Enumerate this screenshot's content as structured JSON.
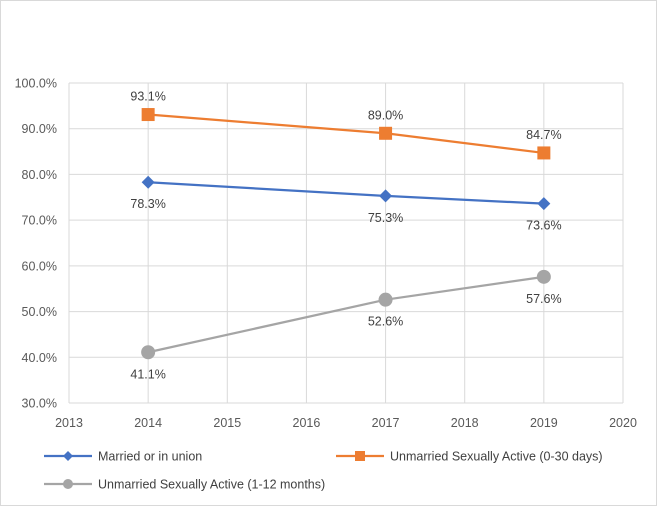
{
  "chart_data": {
    "type": "line",
    "title": "",
    "xlabel": "",
    "ylabel": "",
    "xlim": [
      2013,
      2020
    ],
    "ylim": [
      30,
      100
    ],
    "x_ticks": [
      2013,
      2014,
      2015,
      2016,
      2017,
      2018,
      2019,
      2020
    ],
    "y_ticks": [
      30,
      40,
      50,
      60,
      70,
      80,
      90,
      100
    ],
    "x_tick_labels": [
      "2013",
      "2014",
      "2015",
      "2016",
      "2017",
      "2018",
      "2019",
      "2020"
    ],
    "y_tick_labels": [
      "30.0%",
      "40.0%",
      "50.0%",
      "60.0%",
      "70.0%",
      "80.0%",
      "90.0%",
      "100.0%"
    ],
    "grid": true,
    "legend_position": "bottom",
    "series": [
      {
        "name": "Married or in union",
        "color": "#4472c4",
        "marker": "diamond",
        "x": [
          2014,
          2017,
          2019
        ],
        "values": [
          78.3,
          75.3,
          73.6
        ],
        "labels": [
          "78.3%",
          "75.3%",
          "73.6%"
        ],
        "label_position": "below"
      },
      {
        "name": "Unmarried Sexually Active (0-30 days)",
        "color": "#ed7d31",
        "marker": "square",
        "x": [
          2014,
          2017,
          2019
        ],
        "values": [
          93.1,
          89.0,
          84.7
        ],
        "labels": [
          "93.1%",
          "89.0%",
          "84.7%"
        ],
        "label_position": "above"
      },
      {
        "name": "Unmarried Sexually Active (1-12 months)",
        "color": "#a5a5a5",
        "marker": "circle",
        "x": [
          2014,
          2017,
          2019
        ],
        "values": [
          41.1,
          52.6,
          57.6
        ],
        "labels": [
          "41.1%",
          "52.6%",
          "57.6%"
        ],
        "label_position": "below"
      }
    ]
  }
}
